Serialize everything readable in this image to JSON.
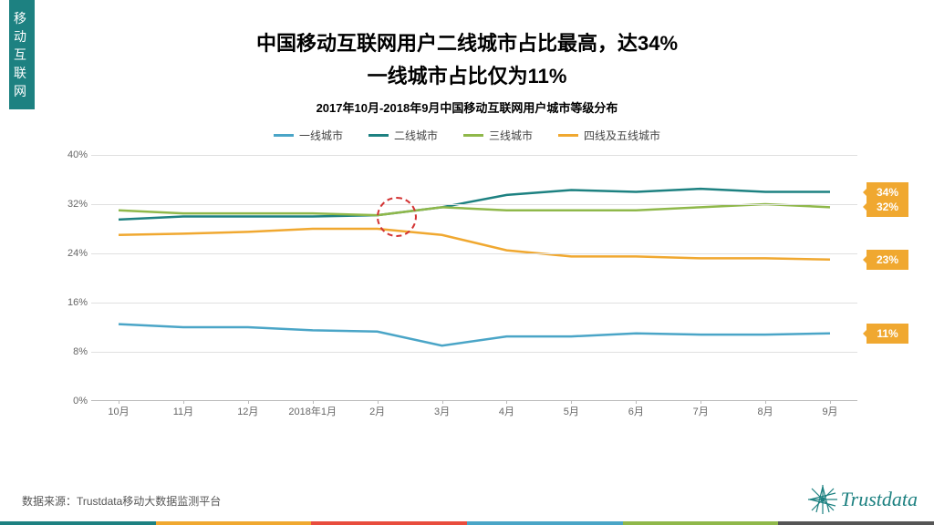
{
  "side_tab": "移动互联网",
  "title_line1": "中国移动互联网用户二线城市占比最高，达34%",
  "title_line2": "一线城市占比仅为11%",
  "subtitle": "2017年10月-2018年9月中国移动互联网用户城市等级分布",
  "source": "数据来源：Trustdata移动大数据监测平台",
  "logo_text": "Trustdata",
  "chart": {
    "type": "line",
    "ylim": [
      0,
      40
    ],
    "ytick_step": 8,
    "y_suffix": "%",
    "categories": [
      "10月",
      "11月",
      "12月",
      "2018年1月",
      "2月",
      "3月",
      "4月",
      "5月",
      "6月",
      "7月",
      "8月",
      "9月"
    ],
    "grid_color": "#e0e0e0",
    "axis_color": "#bbbbbb",
    "plot_bg": "#ffffff",
    "line_width": 2.5,
    "highlight_circle": {
      "x_index": 4.3,
      "y_value": 30,
      "color": "#d33333"
    },
    "series": [
      {
        "name": "一线城市",
        "color": "#4aa5c7",
        "values": [
          12.5,
          12.0,
          12.0,
          11.5,
          11.3,
          9.0,
          10.5,
          10.5,
          11.0,
          10.8,
          10.8,
          11.0
        ],
        "end_label": "11%"
      },
      {
        "name": "二线城市",
        "color": "#1d8181",
        "values": [
          29.5,
          30.0,
          30.0,
          30.0,
          30.2,
          31.5,
          33.5,
          34.3,
          34.0,
          34.5,
          34.0,
          34.0
        ],
        "end_label": "34%"
      },
      {
        "name": "三线城市",
        "color": "#8fb84a",
        "values": [
          31.0,
          30.5,
          30.5,
          30.5,
          30.2,
          31.5,
          31.0,
          31.0,
          31.0,
          31.5,
          32.0,
          31.5
        ],
        "end_label": "32%"
      },
      {
        "name": "四线及五线城市",
        "color": "#f0a830",
        "values": [
          27.0,
          27.2,
          27.5,
          28.0,
          28.0,
          27.0,
          24.5,
          23.5,
          23.5,
          23.2,
          23.2,
          23.0
        ],
        "end_label": "23%"
      }
    ],
    "legend_order": [
      0,
      1,
      2,
      3
    ],
    "badge_bg": "#f0a830",
    "label_fontsize": 11
  },
  "bottom_bar_colors": [
    "#1d8181",
    "#f0a830",
    "#e84c3d",
    "#4aa5c7",
    "#8fb84a",
    "#555555"
  ]
}
